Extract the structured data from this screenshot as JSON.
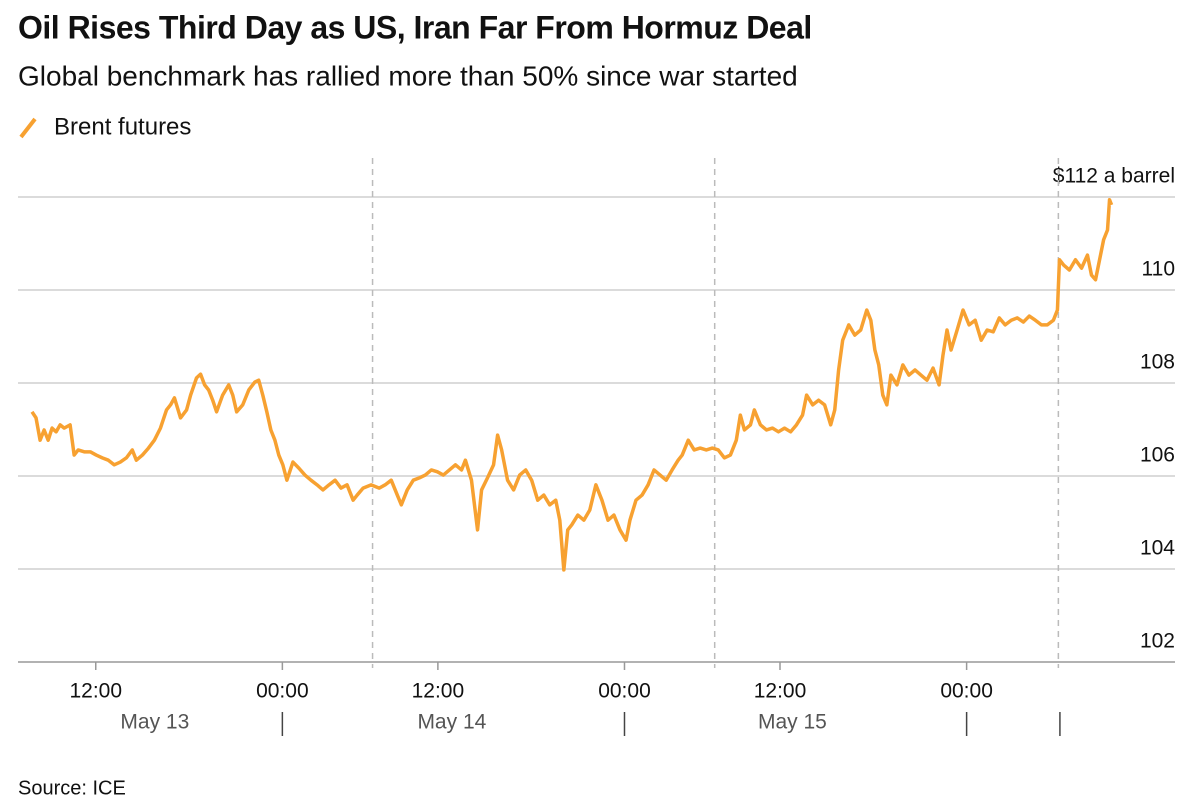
{
  "chart_data": {
    "type": "line",
    "title": "Oil Rises Third Day as US, Iran Far From Hormuz Deal",
    "subtitle": "Global benchmark has rallied more than 50% since war started",
    "source": "Source: ICE",
    "ylim": [
      102,
      112
    ],
    "yticks": [
      {
        "value": 112,
        "label": "$112 a barrel"
      },
      110,
      108,
      106,
      104,
      102
    ],
    "grid": true,
    "xlim": [
      0,
      74.4
    ],
    "xticks": [
      {
        "value": 5,
        "label": "12:00"
      },
      {
        "value": 17,
        "label": "00:00"
      },
      {
        "value": 27,
        "label": "12:00"
      },
      {
        "value": 39,
        "label": "00:00"
      },
      {
        "value": 49,
        "label": "12:00"
      },
      {
        "value": 61,
        "label": "00:00"
      }
    ],
    "date_labels": [
      {
        "value": 8.8,
        "label": "May 13"
      },
      {
        "value": 27.9,
        "label": "May 14"
      },
      {
        "value": 49.8,
        "label": "May 15"
      }
    ],
    "day_dividers": [
      17,
      39,
      61,
      67
    ],
    "session_breaks": [
      22.8,
      44.8,
      66.9
    ],
    "x": [
      0.9,
      1.16,
      1.42,
      1.68,
      1.94,
      2.19,
      2.45,
      2.71,
      2.97,
      3.35,
      3.61,
      3.87,
      4.26,
      4.65,
      5.03,
      5.42,
      5.81,
      6.19,
      6.58,
      6.97,
      7.35,
      7.61,
      8.0,
      8.39,
      8.77,
      9.16,
      9.55,
      9.81,
      10.06,
      10.45,
      10.84,
      11.1,
      11.48,
      11.74,
      12.0,
      12.26,
      12.52,
      12.77,
      13.16,
      13.55,
      13.81,
      14.06,
      14.45,
      14.84,
      15.23,
      15.48,
      15.74,
      16.0,
      16.26,
      16.52,
      16.77,
      17.03,
      17.29,
      17.68,
      18.06,
      18.45,
      18.84,
      19.23,
      19.61,
      20.0,
      20.39,
      20.77,
      21.16,
      21.55,
      21.81,
      22.19,
      22.71,
      23.23,
      23.61,
      24.0,
      24.39,
      24.65,
      25.03,
      25.42,
      25.81,
      26.19,
      26.58,
      26.97,
      27.35,
      27.74,
      28.13,
      28.52,
      28.77,
      29.16,
      29.55,
      29.81,
      30.19,
      30.58,
      30.84,
      31.1,
      31.48,
      31.87,
      32.26,
      32.65,
      33.03,
      33.42,
      33.81,
      34.19,
      34.58,
      34.84,
      35.1,
      35.35,
      35.61,
      36.0,
      36.39,
      36.77,
      37.16,
      37.55,
      37.94,
      38.32,
      38.71,
      39.1,
      39.35,
      39.74,
      40.13,
      40.52,
      40.9,
      41.29,
      41.68,
      42.06,
      42.45,
      42.71,
      43.1,
      43.48,
      43.87,
      44.26,
      44.65,
      45.03,
      45.42,
      45.81,
      46.19,
      46.45,
      46.71,
      47.1,
      47.35,
      47.74,
      48.13,
      48.52,
      48.9,
      49.29,
      49.68,
      50.06,
      50.45,
      50.71,
      51.1,
      51.48,
      51.87,
      52.26,
      52.52,
      52.77,
      53.03,
      53.42,
      53.81,
      54.19,
      54.58,
      54.84,
      55.1,
      55.35,
      55.61,
      55.87,
      56.13,
      56.52,
      56.9,
      57.29,
      57.68,
      58.06,
      58.45,
      58.84,
      59.23,
      59.48,
      59.74,
      60.0,
      60.39,
      60.77,
      61.16,
      61.55,
      61.94,
      62.32,
      62.71,
      63.1,
      63.48,
      63.87,
      64.26,
      64.65,
      65.03,
      65.42,
      65.81,
      66.19,
      66.58,
      66.84,
      66.97,
      67.23,
      67.61,
      68.0,
      68.39,
      68.77,
      69.03,
      69.29,
      69.55,
      69.81,
      70.06,
      70.19,
      70.32
    ],
    "series": [
      {
        "name": "Brent futures",
        "color": "#f7a131",
        "values": [
          107.38,
          107.25,
          106.77,
          106.99,
          106.77,
          107.03,
          106.95,
          107.1,
          107.03,
          107.1,
          106.45,
          106.56,
          106.52,
          106.52,
          106.45,
          106.39,
          106.34,
          106.24,
          106.3,
          106.39,
          106.56,
          106.34,
          106.45,
          106.6,
          106.77,
          107.03,
          107.42,
          107.53,
          107.68,
          107.25,
          107.42,
          107.74,
          108.11,
          108.19,
          107.96,
          107.85,
          107.63,
          107.38,
          107.74,
          107.96,
          107.74,
          107.38,
          107.53,
          107.85,
          108.02,
          108.06,
          107.74,
          107.38,
          106.99,
          106.77,
          106.45,
          106.24,
          105.91,
          106.3,
          106.17,
          106.02,
          105.91,
          105.81,
          105.7,
          105.81,
          105.91,
          105.74,
          105.81,
          105.48,
          105.59,
          105.74,
          105.81,
          105.74,
          105.81,
          105.91,
          105.59,
          105.38,
          105.7,
          105.91,
          105.96,
          106.02,
          106.13,
          106.09,
          106.02,
          106.13,
          106.24,
          106.13,
          106.34,
          105.91,
          104.84,
          105.7,
          105.96,
          106.24,
          106.88,
          106.56,
          105.91,
          105.7,
          106.02,
          106.13,
          105.91,
          105.48,
          105.59,
          105.38,
          105.48,
          105.05,
          103.98,
          104.84,
          104.95,
          105.16,
          105.05,
          105.27,
          105.81,
          105.48,
          105.05,
          105.16,
          104.84,
          104.62,
          105.05,
          105.48,
          105.59,
          105.81,
          106.13,
          106.02,
          105.91,
          106.13,
          106.34,
          106.45,
          106.77,
          106.56,
          106.6,
          106.56,
          106.6,
          106.56,
          106.39,
          106.45,
          106.77,
          107.31,
          106.99,
          107.1,
          107.42,
          107.1,
          106.99,
          107.03,
          106.95,
          107.03,
          106.95,
          107.1,
          107.31,
          107.74,
          107.53,
          107.63,
          107.53,
          107.1,
          107.42,
          108.28,
          108.92,
          109.25,
          109.03,
          109.14,
          109.57,
          109.35,
          108.71,
          108.39,
          107.74,
          107.53,
          108.17,
          107.96,
          108.39,
          108.17,
          108.28,
          108.17,
          108.06,
          108.32,
          107.96,
          108.6,
          109.14,
          108.71,
          109.14,
          109.57,
          109.25,
          109.35,
          108.92,
          109.14,
          109.1,
          109.4,
          109.25,
          109.35,
          109.4,
          109.31,
          109.44,
          109.35,
          109.25,
          109.25,
          109.35,
          109.57,
          110.65,
          110.54,
          110.43,
          110.65,
          110.47,
          110.75,
          110.32,
          110.22,
          110.65,
          111.08,
          111.29,
          111.94,
          111.83
        ]
      }
    ]
  }
}
